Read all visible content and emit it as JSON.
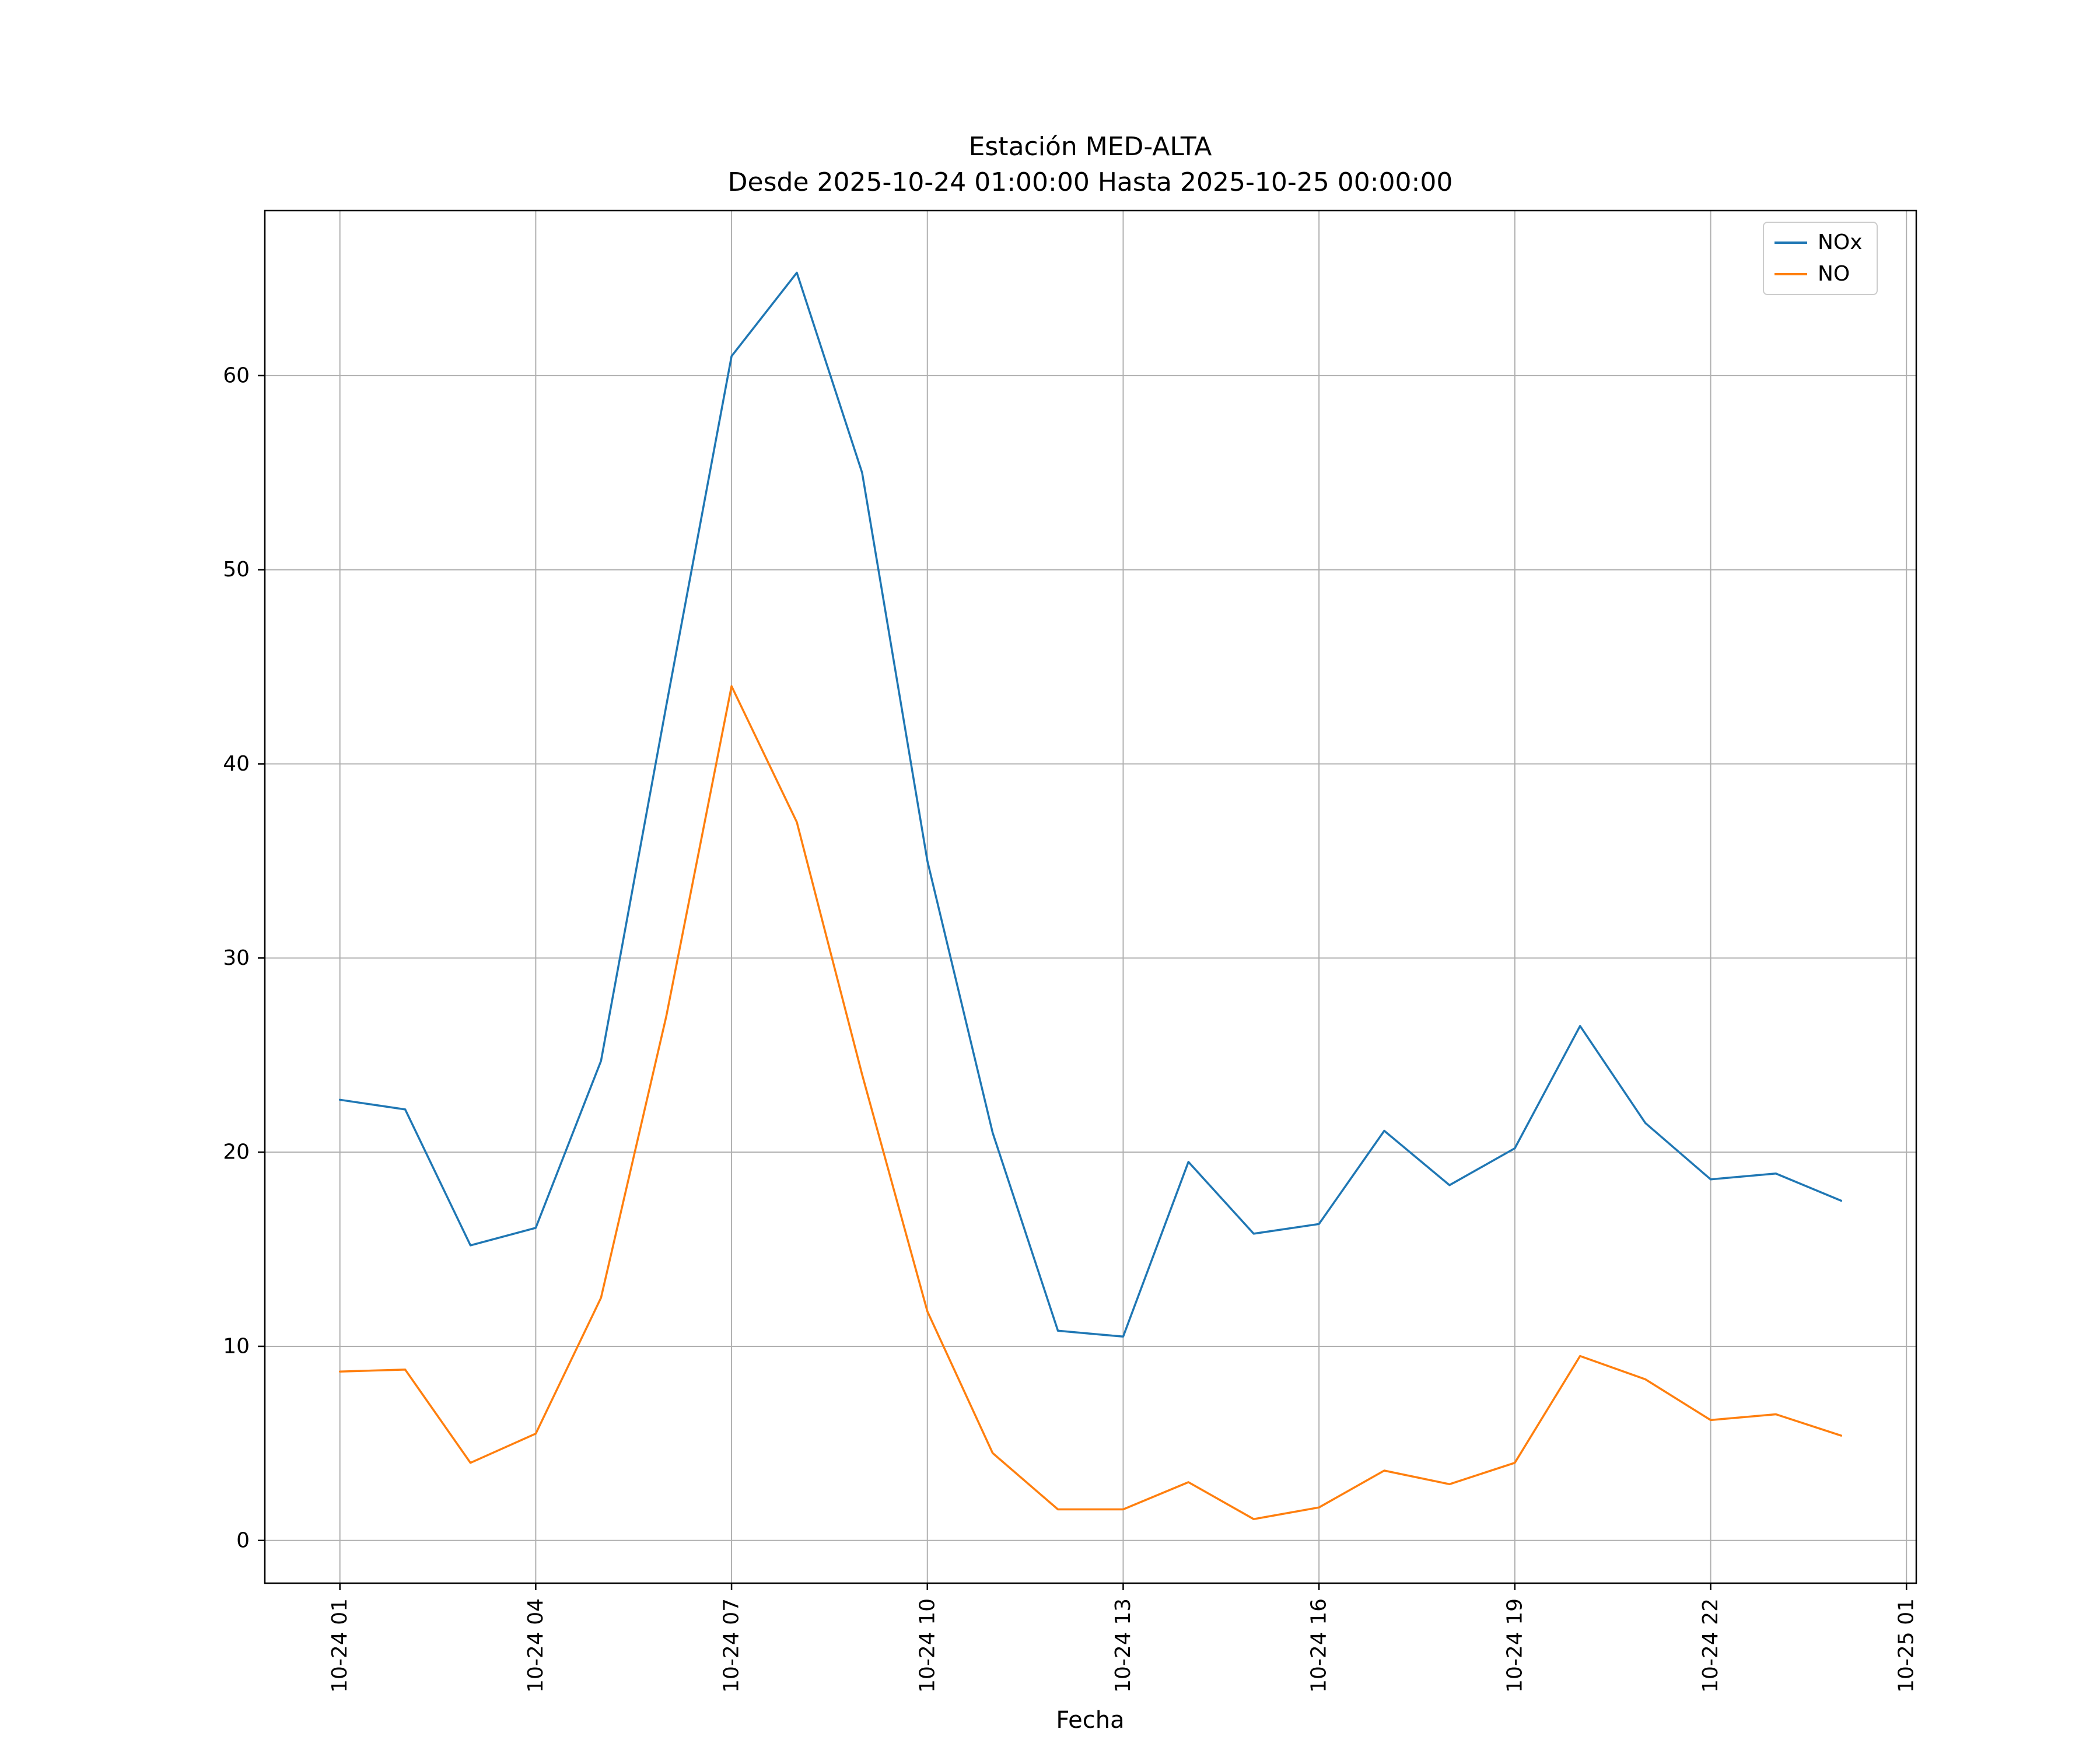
{
  "title": {
    "line1": "Estación MED-ALTA",
    "line2": "Desde 2025-10-24 01:00:00 Hasta 2025-10-25 00:00:00"
  },
  "chart_data": {
    "type": "line",
    "title": "Estación MED-ALTA\nDesde 2025-10-24 01:00:00 Hasta 2025-10-25 00:00:00",
    "xlabel": "Fecha",
    "ylabel": "",
    "x_unit": "hour (2025-10-24 01:00 through 2025-10-25 00:00, hourly)",
    "x": [
      1,
      2,
      3,
      4,
      5,
      6,
      7,
      8,
      9,
      10,
      11,
      12,
      13,
      14,
      15,
      16,
      17,
      18,
      19,
      20,
      21,
      22,
      23,
      24
    ],
    "series": [
      {
        "name": "NOx",
        "color": "#1f77b4",
        "values": [
          22.7,
          22.2,
          15.2,
          16.1,
          24.7,
          43.0,
          61.0,
          65.3,
          55.0,
          35.0,
          21.0,
          10.8,
          10.5,
          19.5,
          15.8,
          16.3,
          21.1,
          18.3,
          20.2,
          26.5,
          21.5,
          18.6,
          18.9,
          17.5
        ]
      },
      {
        "name": "NO",
        "color": "#ff7f0e",
        "values": [
          8.7,
          8.8,
          4.0,
          5.5,
          12.5,
          27.0,
          44.0,
          37.0,
          24.0,
          11.8,
          4.5,
          1.6,
          1.6,
          3.0,
          1.1,
          1.7,
          3.6,
          2.9,
          4.0,
          9.5,
          8.3,
          6.2,
          6.5,
          5.4
        ]
      }
    ],
    "xticks": [
      {
        "x": 1,
        "label": "10-24 01"
      },
      {
        "x": 4,
        "label": "10-24 04"
      },
      {
        "x": 7,
        "label": "10-24 07"
      },
      {
        "x": 10,
        "label": "10-24 10"
      },
      {
        "x": 13,
        "label": "10-24 13"
      },
      {
        "x": 16,
        "label": "10-24 16"
      },
      {
        "x": 19,
        "label": "10-24 19"
      },
      {
        "x": 22,
        "label": "10-24 22"
      },
      {
        "x": 25,
        "label": "10-25 01"
      }
    ],
    "yticks": [
      0,
      10,
      20,
      30,
      40,
      50,
      60
    ],
    "xlim": [
      -0.15,
      25.15
    ],
    "ylim": [
      -2.2,
      68.5
    ],
    "grid": true,
    "grid_color": "#b0b0b0",
    "legend": {
      "position": "upper right",
      "entries": [
        "NOx",
        "NO"
      ]
    }
  }
}
